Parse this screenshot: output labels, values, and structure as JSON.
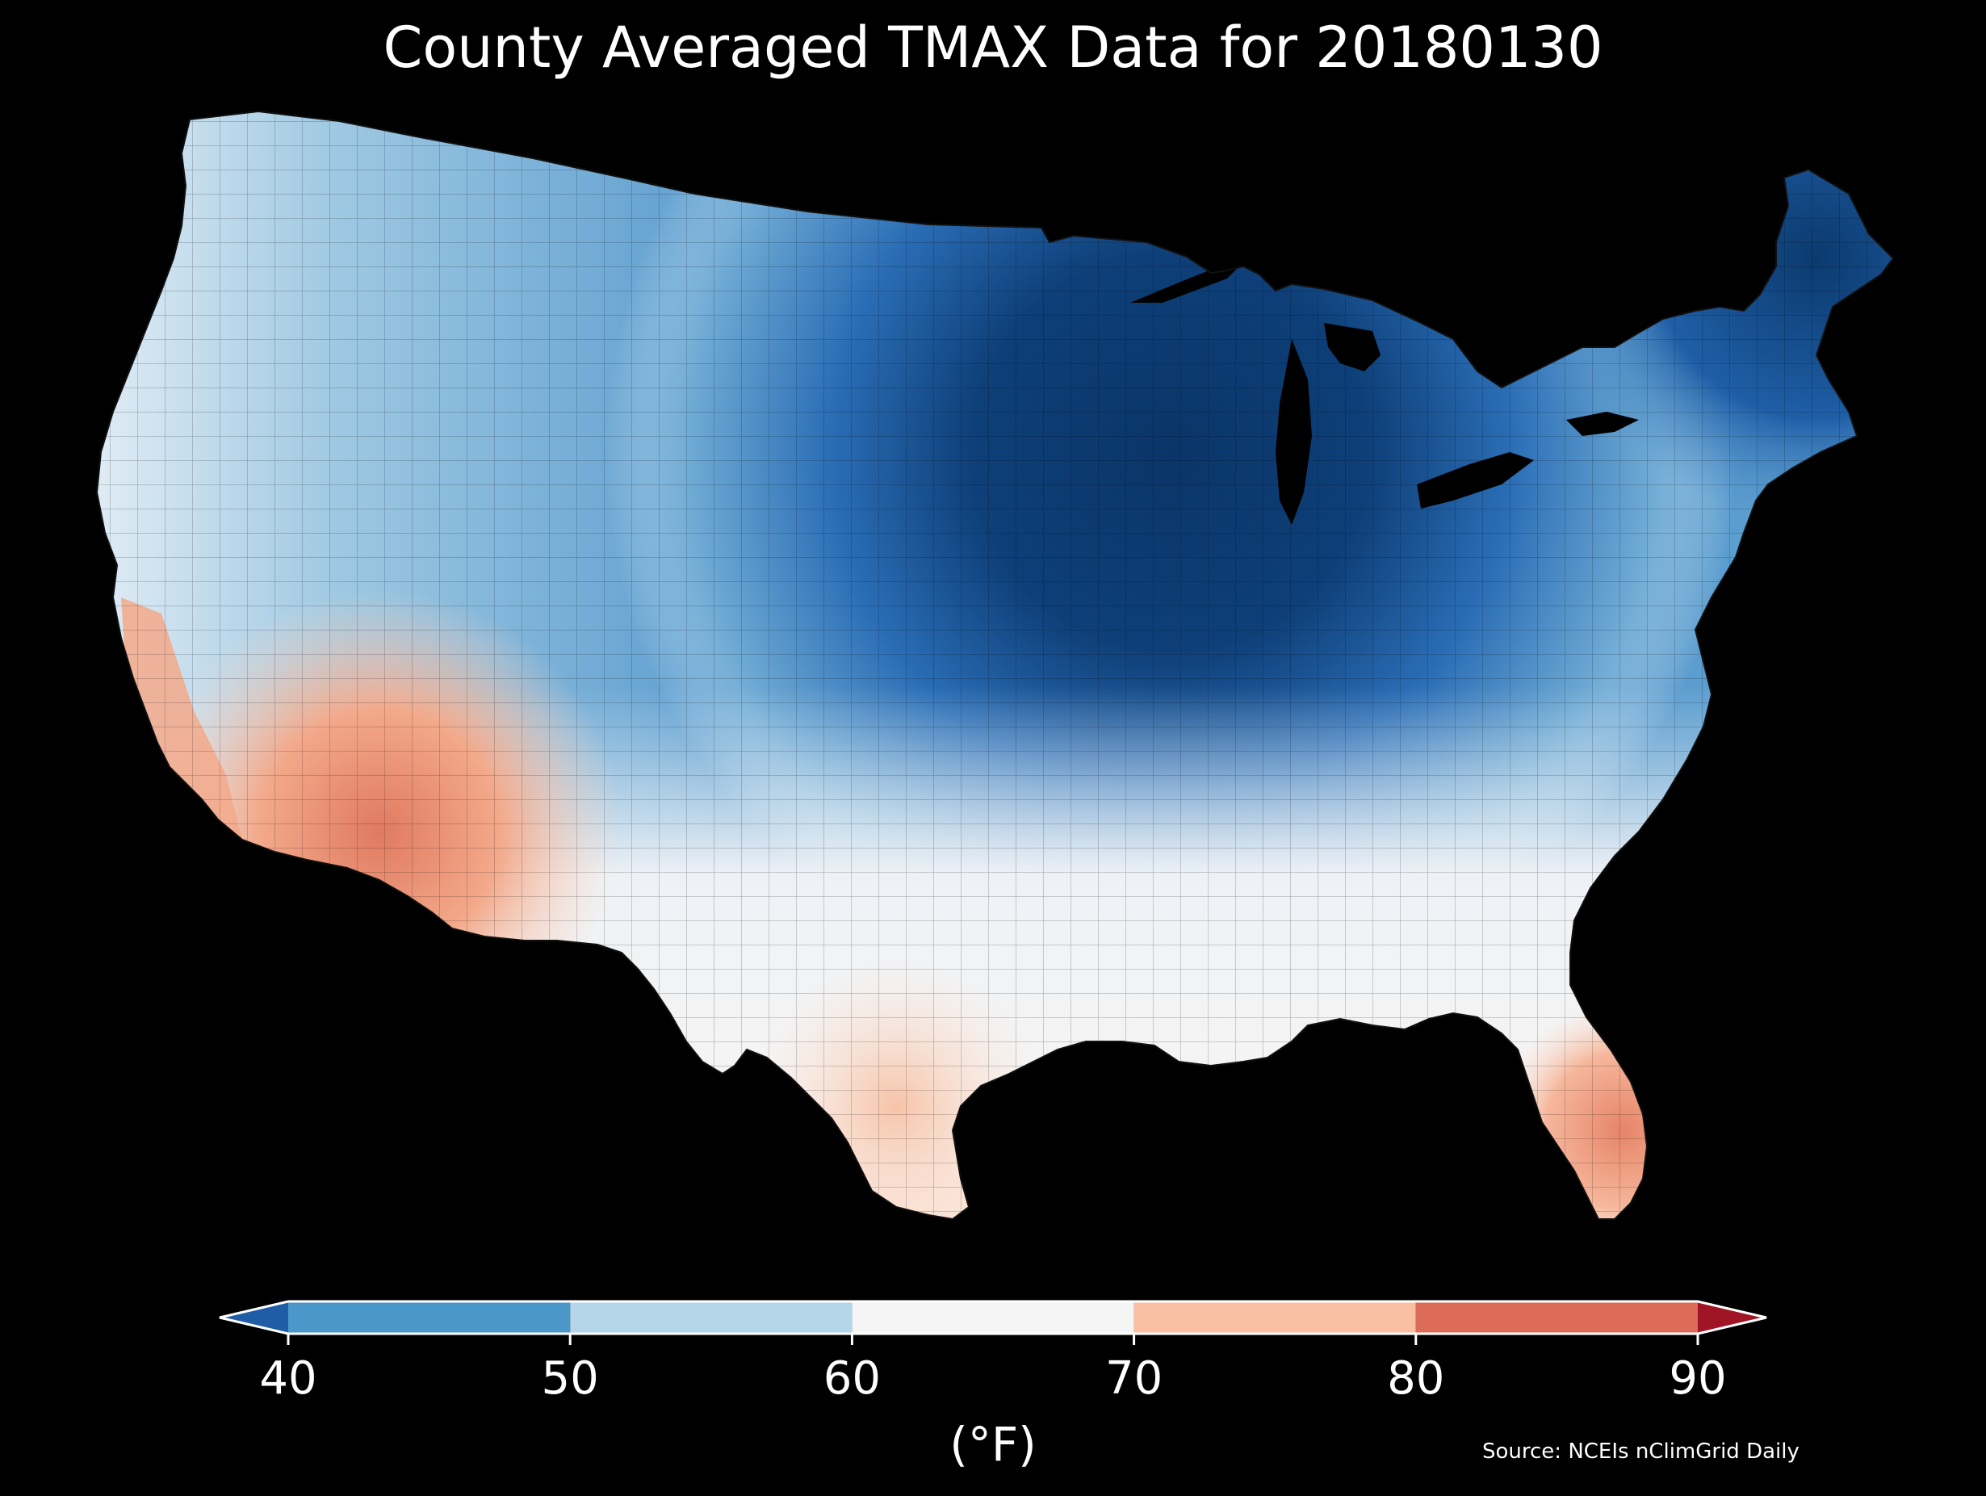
{
  "title": "County Averaged TMAX Data for 20180130",
  "source": "Source: NCEIs nClimGrid Daily",
  "colorbar": {
    "units": "(°F)",
    "ticks": [
      "40",
      "50",
      "60",
      "70",
      "80",
      "90"
    ],
    "bins": [
      {
        "range": [
          40,
          50
        ],
        "color": "#4b97c9"
      },
      {
        "range": [
          50,
          60
        ],
        "color": "#b5d6e8"
      },
      {
        "range": [
          60,
          70
        ],
        "color": "#f5f5f5"
      },
      {
        "range": [
          70,
          80
        ],
        "color": "#f9c0a4"
      },
      {
        "range": [
          80,
          90
        ],
        "color": "#dc6b58"
      }
    ],
    "extend_low_color": "#1f5ea6",
    "extend_high_color": "#a01526"
  },
  "map_palette": {
    "very_cold": "#0b3a6e",
    "cold": "#2a6db5",
    "cool": "#6eaad4",
    "mild": "#c5dff0",
    "neutral": "#f4f4f6",
    "warm": "#fbd2bd",
    "hot": "#e68468"
  }
}
